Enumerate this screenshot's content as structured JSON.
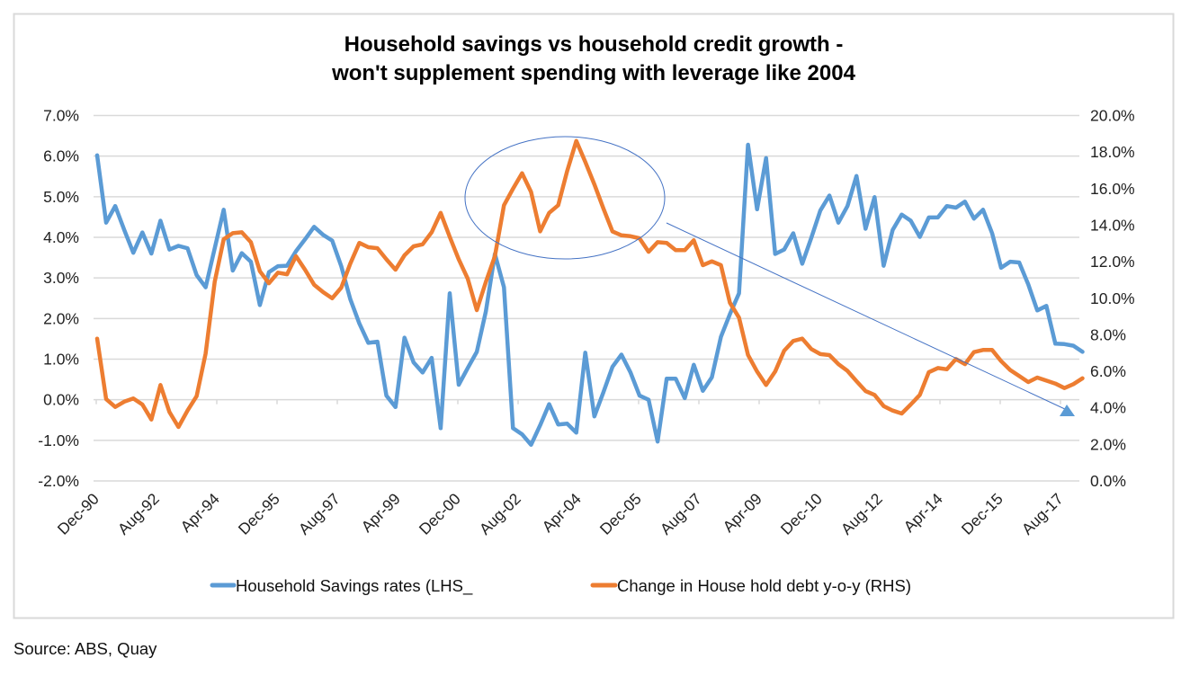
{
  "chart_data": {
    "type": "line",
    "title": [
      "Household savings vs household credit growth -",
      "won't supplement spending with leverage like 2004"
    ],
    "x_tick_labels": [
      "Dec-90",
      "Aug-92",
      "Apr-94",
      "Dec-95",
      "Aug-97",
      "Apr-99",
      "Dec-00",
      "Aug-02",
      "Apr-04",
      "Dec-05",
      "Aug-07",
      "Apr-09",
      "Dec-10",
      "Aug-12",
      "Apr-14",
      "Dec-15",
      "Aug-17"
    ],
    "y_left": {
      "ticks": [
        "-2.0%",
        "-1.0%",
        "0.0%",
        "1.0%",
        "2.0%",
        "3.0%",
        "4.0%",
        "5.0%",
        "6.0%",
        "7.0%"
      ],
      "lim": [
        -2,
        7
      ],
      "unit": "%"
    },
    "y_right": {
      "ticks": [
        "0.0%",
        "2.0%",
        "4.0%",
        "6.0%",
        "8.0%",
        "10.0%",
        "12.0%",
        "14.0%",
        "16.0%",
        "18.0%",
        "20.0%"
      ],
      "lim": [
        0,
        20
      ],
      "unit": "%"
    },
    "grid": true,
    "legend_position": "bottom",
    "x": [
      "Dec-90",
      "Mar-91",
      "Jun-91",
      "Sep-91",
      "Dec-91",
      "Mar-92",
      "Jun-92",
      "Sep-92",
      "Dec-92",
      "Mar-93",
      "Jun-93",
      "Sep-93",
      "Dec-93",
      "Mar-94",
      "Jun-94",
      "Sep-94",
      "Dec-94",
      "Mar-95",
      "Jun-95",
      "Sep-95",
      "Dec-95",
      "Mar-96",
      "Jun-96",
      "Sep-96",
      "Dec-96",
      "Mar-97",
      "Jun-97",
      "Sep-97",
      "Dec-97",
      "Mar-98",
      "Jun-98",
      "Sep-98",
      "Dec-98",
      "Mar-99",
      "Jun-99",
      "Sep-99",
      "Dec-99",
      "Mar-00",
      "Jun-00",
      "Sep-00",
      "Dec-00",
      "Mar-01",
      "Jun-01",
      "Sep-01",
      "Dec-01",
      "Mar-02",
      "Jun-02",
      "Sep-02",
      "Dec-02",
      "Mar-03",
      "Jun-03",
      "Sep-03",
      "Dec-03",
      "Mar-04",
      "Jun-04",
      "Sep-04",
      "Dec-04",
      "Mar-05",
      "Jun-05",
      "Sep-05",
      "Dec-05",
      "Mar-06",
      "Jun-06",
      "Sep-06",
      "Dec-06",
      "Mar-07",
      "Jun-07",
      "Sep-07",
      "Dec-07",
      "Mar-08",
      "Jun-08",
      "Sep-08",
      "Dec-08",
      "Mar-09",
      "Jun-09",
      "Sep-09",
      "Dec-09",
      "Mar-10",
      "Jun-10",
      "Sep-10",
      "Dec-10",
      "Mar-11",
      "Jun-11",
      "Sep-11",
      "Dec-11",
      "Mar-12",
      "Jun-12",
      "Sep-12",
      "Dec-12",
      "Mar-13",
      "Jun-13",
      "Sep-13",
      "Dec-13",
      "Mar-14",
      "Jun-14",
      "Sep-14",
      "Dec-14",
      "Mar-15",
      "Jun-15",
      "Sep-15",
      "Dec-15",
      "Mar-16",
      "Jun-16",
      "Sep-16",
      "Dec-16",
      "Mar-17",
      "Jun-17",
      "Sep-17",
      "Dec-17",
      "Mar-18"
    ],
    "series": [
      {
        "name": "Household Savings rates (LHS_",
        "axis": "left",
        "color": "#5B9BD5",
        "values": [
          6.02,
          4.36,
          4.77,
          4.18,
          3.62,
          4.12,
          3.6,
          4.41,
          3.7,
          3.79,
          3.73,
          3.07,
          2.77,
          3.73,
          4.68,
          3.18,
          3.61,
          3.4,
          2.33,
          3.14,
          3.29,
          3.3,
          3.66,
          3.95,
          4.26,
          4.06,
          3.92,
          3.29,
          2.48,
          1.88,
          1.4,
          1.43,
          0.1,
          -0.18,
          1.53,
          0.92,
          0.67,
          1.03,
          -0.7,
          2.62,
          0.37,
          0.78,
          1.18,
          2.18,
          3.59,
          2.77,
          -0.7,
          -0.85,
          -1.11,
          -0.63,
          -0.11,
          -0.61,
          -0.59,
          -0.81,
          1.16,
          -0.41,
          0.18,
          0.81,
          1.11,
          0.67,
          0.1,
          0.0,
          -1.03,
          0.52,
          0.52,
          0.04,
          0.86,
          0.22,
          0.55,
          1.55,
          2.11,
          2.62,
          6.28,
          4.69,
          5.95,
          3.59,
          3.7,
          4.1,
          3.35,
          3.99,
          4.66,
          5.03,
          4.36,
          4.77,
          5.51,
          4.21,
          4.99,
          3.3,
          4.18,
          4.56,
          4.41,
          4.01,
          4.49,
          4.49,
          4.77,
          4.73,
          4.88,
          4.46,
          4.68,
          4.1,
          3.25,
          3.4,
          3.38,
          2.84,
          2.2,
          2.31,
          1.38,
          1.37,
          1.33,
          1.18
        ]
      },
      {
        "name": "Change in House hold debt y-o-y (RHS)",
        "axis": "right",
        "color": "#ED7D31",
        "values": [
          7.79,
          4.48,
          4.05,
          4.34,
          4.51,
          4.18,
          3.36,
          5.25,
          3.77,
          2.95,
          3.85,
          4.64,
          6.97,
          10.9,
          13.23,
          13.56,
          13.61,
          13.07,
          11.48,
          10.82,
          11.4,
          11.31,
          12.3,
          11.56,
          10.74,
          10.33,
          10.0,
          10.58,
          11.89,
          13.03,
          12.79,
          12.74,
          12.13,
          11.56,
          12.35,
          12.84,
          12.95,
          13.61,
          14.67,
          13.36,
          12.13,
          11.07,
          9.35,
          10.9,
          12.3,
          15.09,
          15.99,
          16.84,
          15.82,
          13.66,
          14.67,
          15.09,
          16.97,
          18.61,
          17.46,
          16.23,
          14.92,
          13.66,
          13.44,
          13.39,
          13.28,
          12.54,
          13.07,
          13.03,
          12.63,
          12.63,
          13.17,
          11.81,
          12.02,
          11.81,
          9.75,
          8.94,
          6.9,
          5.99,
          5.25,
          5.99,
          7.13,
          7.66,
          7.79,
          7.22,
          6.94,
          6.89,
          6.39,
          6.02,
          5.46,
          4.92,
          4.71,
          4.1,
          3.85,
          3.69,
          4.18,
          4.71,
          5.95,
          6.18,
          6.11,
          6.67,
          6.39,
          7.05,
          7.17,
          7.17,
          6.56,
          6.07,
          5.74,
          5.41,
          5.66,
          5.49,
          5.33,
          5.08,
          5.3,
          5.62
        ]
      }
    ],
    "annotations": [
      {
        "type": "ellipse",
        "around": [
          "Aug-02",
          "Dec-05"
        ],
        "color": "#4472C4"
      },
      {
        "type": "arrow",
        "from": "Sep-06",
        "to": "Dec-17",
        "direction": "down",
        "color": "#4472C4"
      }
    ]
  },
  "source": "Source: ABS, Quay"
}
